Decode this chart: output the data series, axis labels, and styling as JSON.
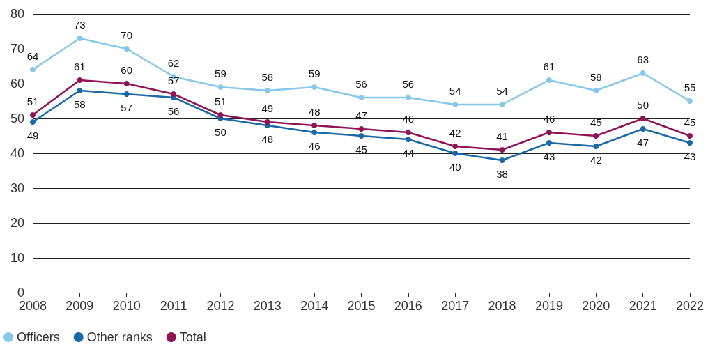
{
  "chart_data": {
    "type": "line",
    "categories": [
      "2008",
      "2009",
      "2010",
      "2011",
      "2012",
      "2013",
      "2014",
      "2015",
      "2016",
      "2017",
      "2018",
      "2019",
      "2020",
      "2021",
      "2022"
    ],
    "series": [
      {
        "name": "Officers",
        "color": "#87c8e8",
        "values": [
          64,
          73,
          70,
          62,
          59,
          58,
          59,
          56,
          56,
          54,
          54,
          61,
          58,
          63,
          55
        ]
      },
      {
        "name": "Other ranks",
        "color": "#1a68a6",
        "values": [
          49,
          58,
          57,
          56,
          50,
          48,
          46,
          45,
          44,
          40,
          38,
          43,
          42,
          47,
          43
        ]
      },
      {
        "name": "Total",
        "color": "#8e1456",
        "values": [
          51,
          61,
          60,
          57,
          51,
          49,
          48,
          47,
          46,
          42,
          41,
          46,
          45,
          50,
          45
        ]
      }
    ],
    "ylim": [
      0,
      80
    ],
    "yticks": [
      0,
      10,
      20,
      30,
      40,
      50,
      60,
      70,
      80
    ],
    "grid": "y",
    "legend": "bottom left",
    "marker": "circle",
    "line_style": "solid",
    "data_labels": true
  }
}
